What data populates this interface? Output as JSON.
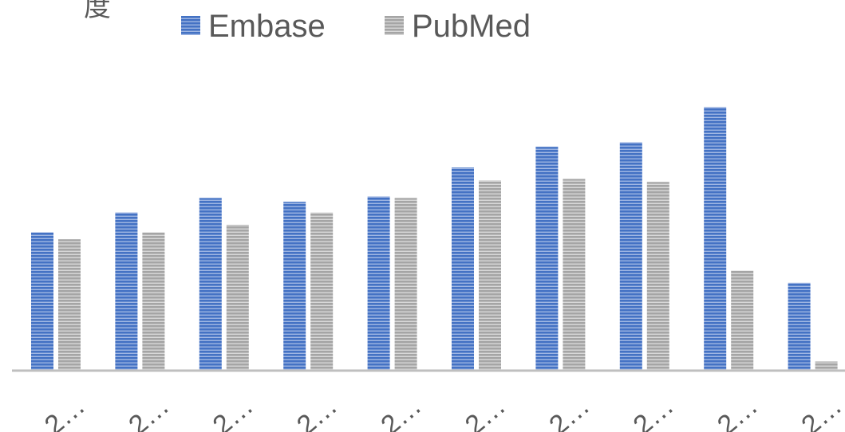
{
  "chart_data": {
    "type": "bar",
    "title_fragment": "度",
    "categories": [
      "2…",
      "2…",
      "2…",
      "2…",
      "2…",
      "2…",
      "2…",
      "2…",
      "2…",
      "2…"
    ],
    "series": [
      {
        "name": "Embase",
        "color": "#4472c4",
        "values": [
          181,
          207,
          226,
          221,
          228,
          266,
          293,
          299,
          345,
          115
        ]
      },
      {
        "name": "PubMed",
        "color": "#a5a5a5",
        "values": [
          172,
          181,
          191,
          207,
          226,
          249,
          251,
          247,
          131,
          12
        ]
      }
    ],
    "ylim": [
      0,
      360
    ],
    "grid": false,
    "legend": "top"
  }
}
